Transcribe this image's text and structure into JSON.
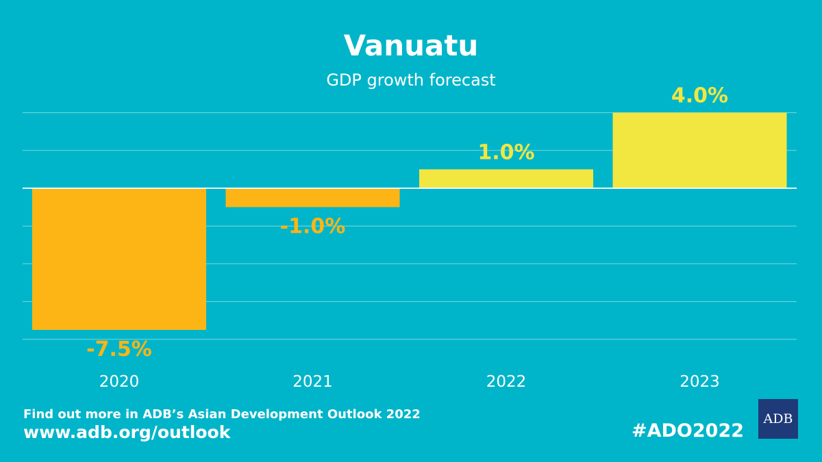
{
  "chart_data": {
    "type": "bar",
    "title": "Vanuatu",
    "subtitle": "GDP growth forecast",
    "categories": [
      "2020",
      "2021",
      "2022",
      "2023"
    ],
    "values": [
      -7.5,
      -1.0,
      1.0,
      4.0
    ],
    "data_labels": [
      "-7.5%",
      "-1.0%",
      "1.0%",
      "4.0%"
    ],
    "ylim": [
      -8,
      4
    ],
    "grid_step": 2,
    "grid": true,
    "colors": {
      "negative": "#fdb515",
      "positive": "#f2e641",
      "background": "#00b5c9",
      "grid": "#7fd6e0"
    }
  },
  "footer": {
    "line1": "Find out more in ADB’s Asian Development Outlook 2022",
    "url": "www.adb.org/outlook",
    "hashtag": "#ADO2022",
    "logo_text": "ADB"
  }
}
